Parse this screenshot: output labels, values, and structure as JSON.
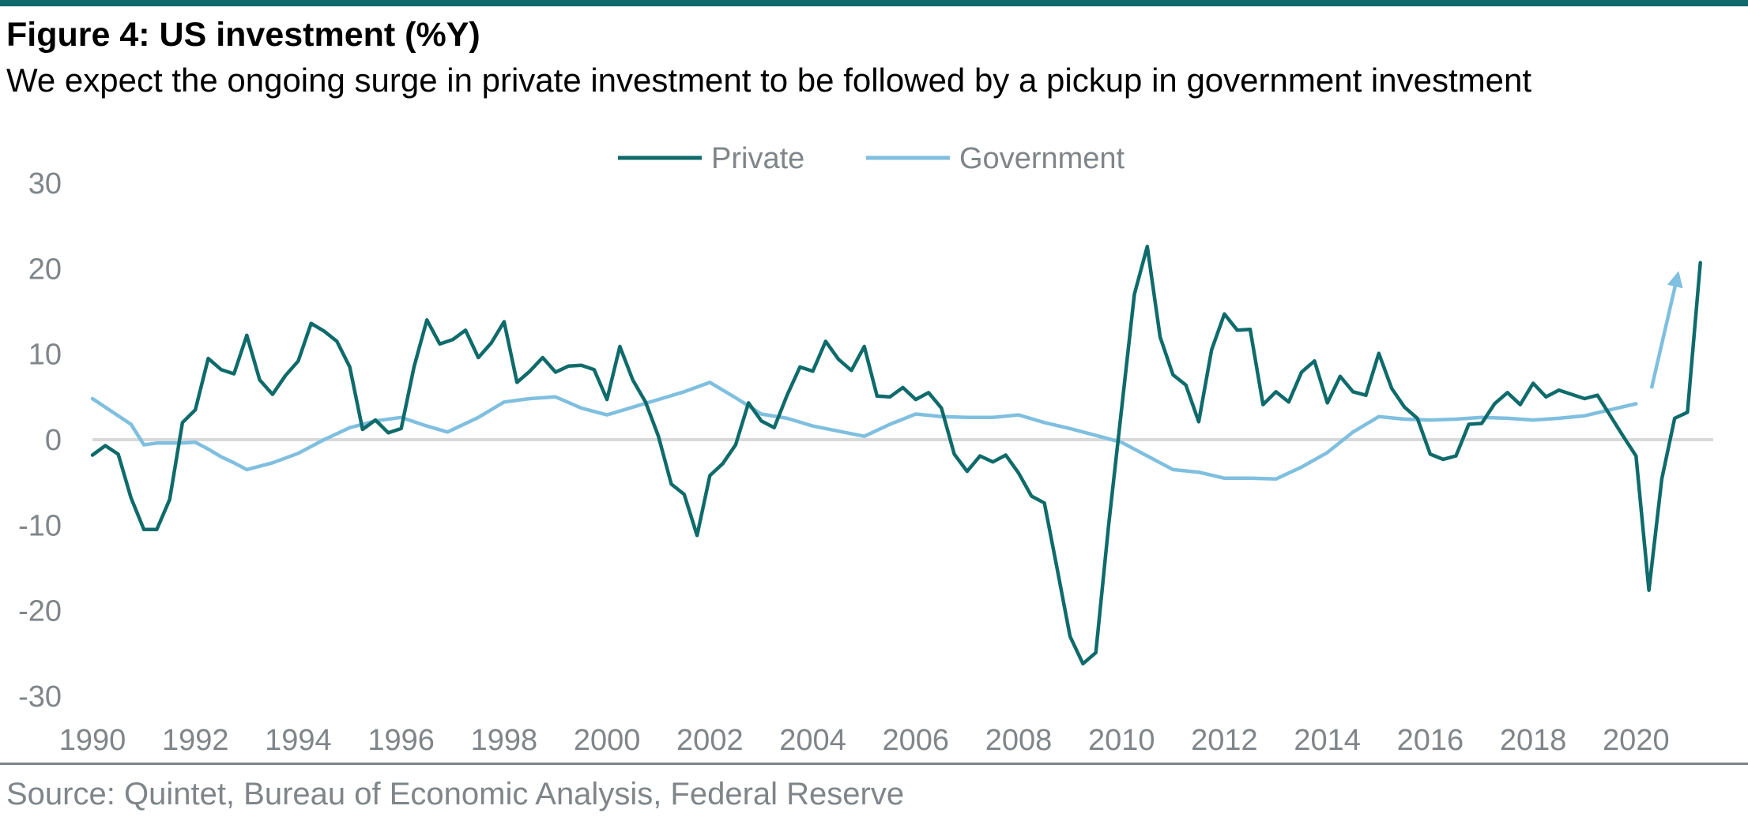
{
  "header": {
    "title": "Figure 4: US investment (%Y)",
    "subtitle": "We expect the ongoing surge in private investment to be followed by a pickup in government investment"
  },
  "footer": {
    "source": "Source: Quintet, Bureau of Economic Analysis, Federal Reserve"
  },
  "colors": {
    "private": "#0f6b6b",
    "government": "#7fbfdf",
    "zero_line": "#d9d9d9",
    "text_grey": "#7f8589"
  },
  "chart_data": {
    "type": "line",
    "title": "Figure 4: US investment (%Y)",
    "subtitle": "We expect the ongoing surge in private investment to be followed by a pickup in government investment",
    "xlabel": "",
    "ylabel": "",
    "xlim": [
      1990,
      2021.5
    ],
    "ylim": [
      -30,
      30
    ],
    "x_ticks": [
      "1990",
      "1992",
      "1994",
      "1996",
      "1998",
      "2000",
      "2002",
      "2004",
      "2006",
      "2008",
      "2010",
      "2012",
      "2014",
      "2016",
      "2018",
      "2020"
    ],
    "y_ticks": [
      "30",
      "20",
      "10",
      "0",
      "-10",
      "-20",
      "-30"
    ],
    "y_tick_values": [
      30,
      20,
      10,
      0,
      -10,
      -20,
      -30
    ],
    "legend_position": "top-center",
    "grid": false,
    "series": [
      {
        "name": "Private",
        "points": [
          [
            1990.0,
            -1.8
          ],
          [
            1990.25,
            -0.7
          ],
          [
            1990.5,
            -1.7
          ],
          [
            1990.75,
            -6.8
          ],
          [
            1991.0,
            -10.5
          ],
          [
            1991.25,
            -10.5
          ],
          [
            1991.5,
            -7.0
          ],
          [
            1991.75,
            2.0
          ],
          [
            1992.0,
            3.5
          ],
          [
            1992.25,
            9.5
          ],
          [
            1992.5,
            8.2
          ],
          [
            1992.75,
            7.7
          ],
          [
            1993.0,
            12.2
          ],
          [
            1993.25,
            7.0
          ],
          [
            1993.5,
            5.3
          ],
          [
            1993.75,
            7.5
          ],
          [
            1994.0,
            9.2
          ],
          [
            1994.25,
            13.6
          ],
          [
            1994.5,
            12.7
          ],
          [
            1994.75,
            11.5
          ],
          [
            1995.0,
            8.5
          ],
          [
            1995.25,
            1.2
          ],
          [
            1995.5,
            2.3
          ],
          [
            1995.75,
            0.8
          ],
          [
            1996.0,
            1.3
          ],
          [
            1996.25,
            8.5
          ],
          [
            1996.5,
            14.0
          ],
          [
            1996.75,
            11.2
          ],
          [
            1997.0,
            11.7
          ],
          [
            1997.25,
            12.8
          ],
          [
            1997.5,
            9.6
          ],
          [
            1997.75,
            11.3
          ],
          [
            1998.0,
            13.8
          ],
          [
            1998.25,
            6.7
          ],
          [
            1998.5,
            8.0
          ],
          [
            1998.75,
            9.6
          ],
          [
            1999.0,
            7.9
          ],
          [
            1999.25,
            8.6
          ],
          [
            1999.5,
            8.7
          ],
          [
            1999.75,
            8.2
          ],
          [
            2000.0,
            4.7
          ],
          [
            2000.25,
            10.9
          ],
          [
            2000.5,
            7.0
          ],
          [
            2000.75,
            4.4
          ],
          [
            2001.0,
            0.4
          ],
          [
            2001.25,
            -5.2
          ],
          [
            2001.5,
            -6.4
          ],
          [
            2001.75,
            -11.2
          ],
          [
            2002.0,
            -4.2
          ],
          [
            2002.25,
            -2.8
          ],
          [
            2002.5,
            -0.6
          ],
          [
            2002.75,
            4.3
          ],
          [
            2003.0,
            2.2
          ],
          [
            2003.25,
            1.4
          ],
          [
            2003.5,
            5.2
          ],
          [
            2003.75,
            8.5
          ],
          [
            2004.0,
            8.0
          ],
          [
            2004.25,
            11.5
          ],
          [
            2004.5,
            9.4
          ],
          [
            2004.75,
            8.1
          ],
          [
            2005.0,
            10.9
          ],
          [
            2005.25,
            5.1
          ],
          [
            2005.5,
            5.0
          ],
          [
            2005.75,
            6.1
          ],
          [
            2006.0,
            4.7
          ],
          [
            2006.25,
            5.5
          ],
          [
            2006.5,
            3.7
          ],
          [
            2006.75,
            -1.7
          ],
          [
            2007.0,
            -3.7
          ],
          [
            2007.25,
            -1.9
          ],
          [
            2007.5,
            -2.6
          ],
          [
            2007.75,
            -1.8
          ],
          [
            2008.0,
            -3.9
          ],
          [
            2008.25,
            -6.6
          ],
          [
            2008.5,
            -7.4
          ],
          [
            2008.75,
            -15.1
          ],
          [
            2009.0,
            -23.0
          ],
          [
            2009.25,
            -26.2
          ],
          [
            2009.5,
            -24.9
          ],
          [
            2009.75,
            -10.0
          ],
          [
            2010.0,
            3.5
          ],
          [
            2010.25,
            17.0
          ],
          [
            2010.5,
            22.6
          ],
          [
            2010.75,
            12.0
          ],
          [
            2011.0,
            7.6
          ],
          [
            2011.25,
            6.4
          ],
          [
            2011.5,
            2.1
          ],
          [
            2011.75,
            10.5
          ],
          [
            2012.0,
            14.7
          ],
          [
            2012.25,
            12.8
          ],
          [
            2012.5,
            12.9
          ],
          [
            2012.75,
            4.1
          ],
          [
            2013.0,
            5.6
          ],
          [
            2013.25,
            4.4
          ],
          [
            2013.5,
            7.9
          ],
          [
            2013.75,
            9.2
          ],
          [
            2014.0,
            4.3
          ],
          [
            2014.25,
            7.4
          ],
          [
            2014.5,
            5.6
          ],
          [
            2014.75,
            5.2
          ],
          [
            2015.0,
            10.1
          ],
          [
            2015.25,
            6.0
          ],
          [
            2015.5,
            3.8
          ],
          [
            2015.75,
            2.5
          ],
          [
            2016.0,
            -1.7
          ],
          [
            2016.25,
            -2.3
          ],
          [
            2016.5,
            -1.9
          ],
          [
            2016.75,
            1.8
          ],
          [
            2017.0,
            1.9
          ],
          [
            2017.25,
            4.2
          ],
          [
            2017.5,
            5.5
          ],
          [
            2017.75,
            4.1
          ],
          [
            2018.0,
            6.6
          ],
          [
            2018.25,
            5.0
          ],
          [
            2018.5,
            5.8
          ],
          [
            2018.75,
            5.3
          ],
          [
            2019.0,
            4.8
          ],
          [
            2019.25,
            5.2
          ],
          [
            2019.5,
            2.8
          ],
          [
            2019.75,
            0.4
          ],
          [
            2020.0,
            -1.9
          ],
          [
            2020.25,
            -17.6
          ],
          [
            2020.5,
            -4.6
          ],
          [
            2020.75,
            2.5
          ],
          [
            2021.0,
            3.2
          ],
          [
            2021.25,
            20.7
          ]
        ]
      },
      {
        "name": "Government",
        "points": [
          [
            1990.0,
            4.8
          ],
          [
            1990.5,
            2.8
          ],
          [
            1990.75,
            1.8
          ],
          [
            1991.0,
            -0.6
          ],
          [
            1991.25,
            -0.4
          ],
          [
            1991.5,
            -0.4
          ],
          [
            1991.75,
            -0.4
          ],
          [
            1992.0,
            -0.3
          ],
          [
            1992.25,
            -1.1
          ],
          [
            1992.5,
            -2.0
          ],
          [
            1992.75,
            -2.7
          ],
          [
            1993.0,
            -3.5
          ],
          [
            1993.5,
            -2.7
          ],
          [
            1994.0,
            -1.6
          ],
          [
            1994.5,
            0.0
          ],
          [
            1995.0,
            1.4
          ],
          [
            1995.5,
            2.2
          ],
          [
            1996.0,
            2.6
          ],
          [
            1996.5,
            1.6
          ],
          [
            1996.9,
            0.9
          ],
          [
            1997.5,
            2.6
          ],
          [
            1998.0,
            4.4
          ],
          [
            1998.5,
            4.8
          ],
          [
            1999.0,
            5.0
          ],
          [
            1999.5,
            3.7
          ],
          [
            2000.0,
            2.9
          ],
          [
            2000.5,
            3.8
          ],
          [
            2001.0,
            4.7
          ],
          [
            2001.5,
            5.6
          ],
          [
            2002.0,
            6.7
          ],
          [
            2002.5,
            4.9
          ],
          [
            2003.0,
            3.0
          ],
          [
            2003.5,
            2.5
          ],
          [
            2004.0,
            1.6
          ],
          [
            2004.5,
            1.0
          ],
          [
            2005.0,
            0.4
          ],
          [
            2005.5,
            1.8
          ],
          [
            2006.0,
            3.0
          ],
          [
            2006.5,
            2.7
          ],
          [
            2007.0,
            2.6
          ],
          [
            2007.5,
            2.6
          ],
          [
            2008.0,
            2.9
          ],
          [
            2008.5,
            2.0
          ],
          [
            2009.0,
            1.3
          ],
          [
            2009.5,
            0.5
          ],
          [
            2010.0,
            -0.3
          ],
          [
            2010.5,
            -1.9
          ],
          [
            2011.0,
            -3.5
          ],
          [
            2011.5,
            -3.8
          ],
          [
            2012.0,
            -4.5
          ],
          [
            2012.5,
            -4.5
          ],
          [
            2013.0,
            -4.6
          ],
          [
            2013.5,
            -3.2
          ],
          [
            2014.0,
            -1.5
          ],
          [
            2014.5,
            0.9
          ],
          [
            2015.0,
            2.7
          ],
          [
            2015.5,
            2.4
          ],
          [
            2016.0,
            2.3
          ],
          [
            2016.5,
            2.4
          ],
          [
            2017.0,
            2.6
          ],
          [
            2017.5,
            2.5
          ],
          [
            2018.0,
            2.3
          ],
          [
            2018.5,
            2.5
          ],
          [
            2019.0,
            2.8
          ],
          [
            2019.5,
            3.5
          ],
          [
            2020.0,
            4.2
          ]
        ]
      }
    ],
    "annotations": [
      {
        "type": "arrow",
        "series": "Government",
        "from": [
          2020.3,
          6.0
        ],
        "to": [
          2020.8,
          19.0
        ]
      }
    ]
  }
}
